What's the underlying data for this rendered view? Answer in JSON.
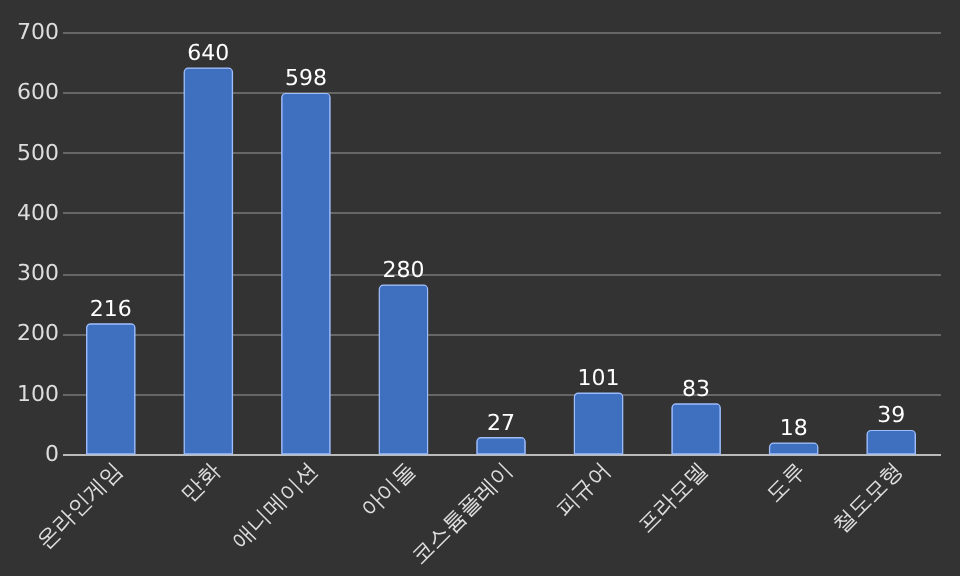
{
  "chart_data": {
    "type": "bar",
    "categories": [
      "온라인게임",
      "만화",
      "애니메이션",
      "아이돌",
      "코스튬플레이",
      "피규어",
      "프라모델",
      "도루",
      "철도모형"
    ],
    "values": [
      216,
      640,
      598,
      280,
      27,
      101,
      83,
      18,
      39
    ],
    "color": "#3f6fbf",
    "ylim": [
      0,
      700
    ],
    "yticks": [
      0,
      100,
      200,
      300,
      400,
      500,
      600,
      700
    ],
    "grid": "y",
    "data_labels": true
  }
}
